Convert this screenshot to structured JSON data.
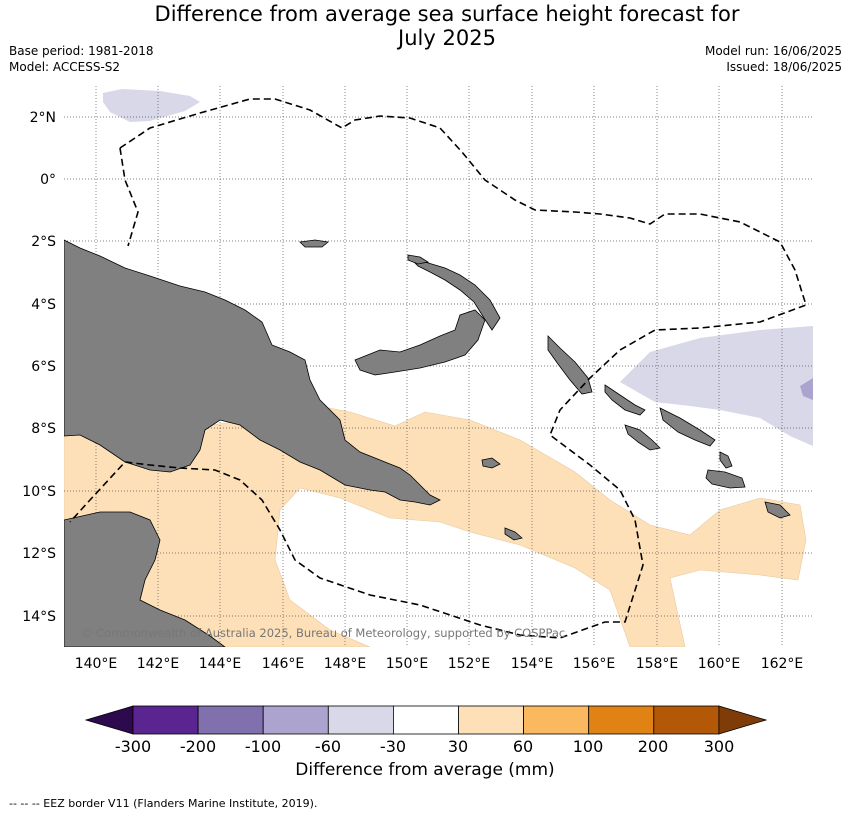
{
  "title_line1": "Difference from average sea surface height forecast for",
  "title_line2": "July 2025",
  "base_period": "Base period: 1981-2018",
  "model": "Model: ACCESS-S2",
  "model_run": "Model run: 16/06/2025",
  "issued": "Issued: 18/06/2025",
  "lat_labels": [
    "2°N",
    "0°",
    "2°S",
    "4°S",
    "6°S",
    "8°S",
    "10°S",
    "12°S",
    "14°S"
  ],
  "lon_labels": [
    "140°E",
    "142°E",
    "144°E",
    "146°E",
    "148°E",
    "150°E",
    "152°E",
    "154°E",
    "156°E",
    "158°E",
    "160°E",
    "162°E"
  ],
  "copyright": "© Commonwealth of Australia 2025, Bureau of Meteorology, supported by COSPPac",
  "colorbar": {
    "ticks": [
      "-300",
      "-200",
      "-100",
      "-60",
      "-30",
      "30",
      "60",
      "100",
      "200",
      "300"
    ],
    "colors": [
      "#2d0a4d",
      "#5a2590",
      "#8070ad",
      "#aca4cf",
      "#d8d8e9",
      "#ffffff",
      "#fde0b8",
      "#fbb95f",
      "#e08214",
      "#b35806",
      "#7f3b08"
    ],
    "label": "Difference from average (mm)"
  },
  "footnote": "--  --  -- EEZ border V11 (Flanders Marine Institute, 2019)."
}
